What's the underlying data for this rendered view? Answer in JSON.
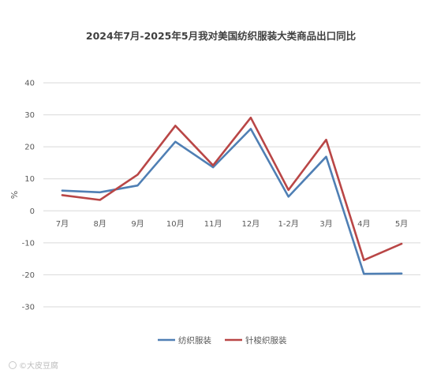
{
  "chart_data": {
    "type": "line",
    "title": "2024年7月-2025年5月我对美国纺织服装大类商品出口同比",
    "ylabel": "%",
    "xlabel": "",
    "categories": [
      "7月",
      "8月",
      "9月",
      "10月",
      "11月",
      "12月",
      "1-2月",
      "3月",
      "4月",
      "5月"
    ],
    "ylim": [
      -30,
      40
    ],
    "yticks": [
      40,
      30,
      20,
      10,
      0,
      -10,
      -20,
      -30
    ],
    "grid": true,
    "legend_position": "bottom",
    "series": [
      {
        "name": "纺织服装",
        "color": "#4f7fb4",
        "values": [
          6.3,
          5.8,
          7.9,
          21.6,
          13.6,
          25.6,
          4.4,
          16.9,
          -19.7,
          -19.6
        ]
      },
      {
        "name": "针梭织服装",
        "color": "#b94646",
        "values": [
          4.9,
          3.4,
          11.3,
          26.6,
          14.2,
          29.1,
          6.5,
          22.2,
          -15.4,
          -10.3
        ]
      }
    ]
  },
  "watermark": "©大皮豆腐"
}
